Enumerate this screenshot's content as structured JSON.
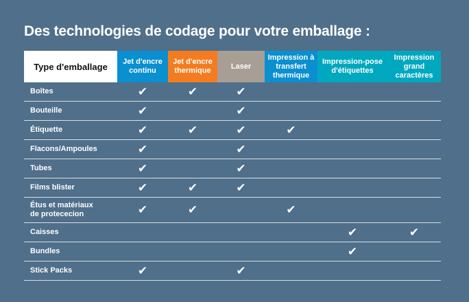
{
  "title": "Des technologies de codage pour votre emballage :",
  "columns": [
    {
      "label": "Jet d'encre continu",
      "color": "#0a8fd0"
    },
    {
      "label": "Jet d'encre thermique",
      "color": "#f47c20"
    },
    {
      "label": "Laser",
      "color": "#a79e95"
    },
    {
      "label": "Impression à transfert thermique",
      "color": "#0a8fd0"
    },
    {
      "label": "Impression-pose d'étiquettes",
      "color": "#00a8bf"
    },
    {
      "label": "Impression grand caractères",
      "color": "#00a8bf"
    }
  ],
  "header": {
    "type_label": "Type d'emballage"
  },
  "check_symbol": "✔",
  "rows": [
    {
      "label": "Boîtes",
      "checks": [
        true,
        true,
        true,
        false,
        false,
        false
      ]
    },
    {
      "label": "Bouteille",
      "checks": [
        true,
        false,
        true,
        false,
        false,
        false
      ]
    },
    {
      "label": "Étiquette",
      "checks": [
        true,
        true,
        true,
        true,
        false,
        false
      ]
    },
    {
      "label": "Flacons/Ampoules",
      "checks": [
        true,
        false,
        true,
        false,
        false,
        false
      ]
    },
    {
      "label": "Tubes",
      "checks": [
        true,
        false,
        true,
        false,
        false,
        false
      ]
    },
    {
      "label": "Films blister",
      "checks": [
        true,
        true,
        true,
        false,
        false,
        false
      ]
    },
    {
      "label": "Étus et matériaux de protececion",
      "checks": [
        true,
        true,
        false,
        true,
        false,
        false
      ]
    },
    {
      "label": "Caisses",
      "checks": [
        false,
        false,
        false,
        false,
        true,
        true
      ]
    },
    {
      "label": "Bundles",
      "checks": [
        false,
        false,
        false,
        false,
        true,
        false
      ]
    },
    {
      "label": "Stick Packs",
      "checks": [
        true,
        false,
        true,
        false,
        false,
        false
      ]
    }
  ]
}
